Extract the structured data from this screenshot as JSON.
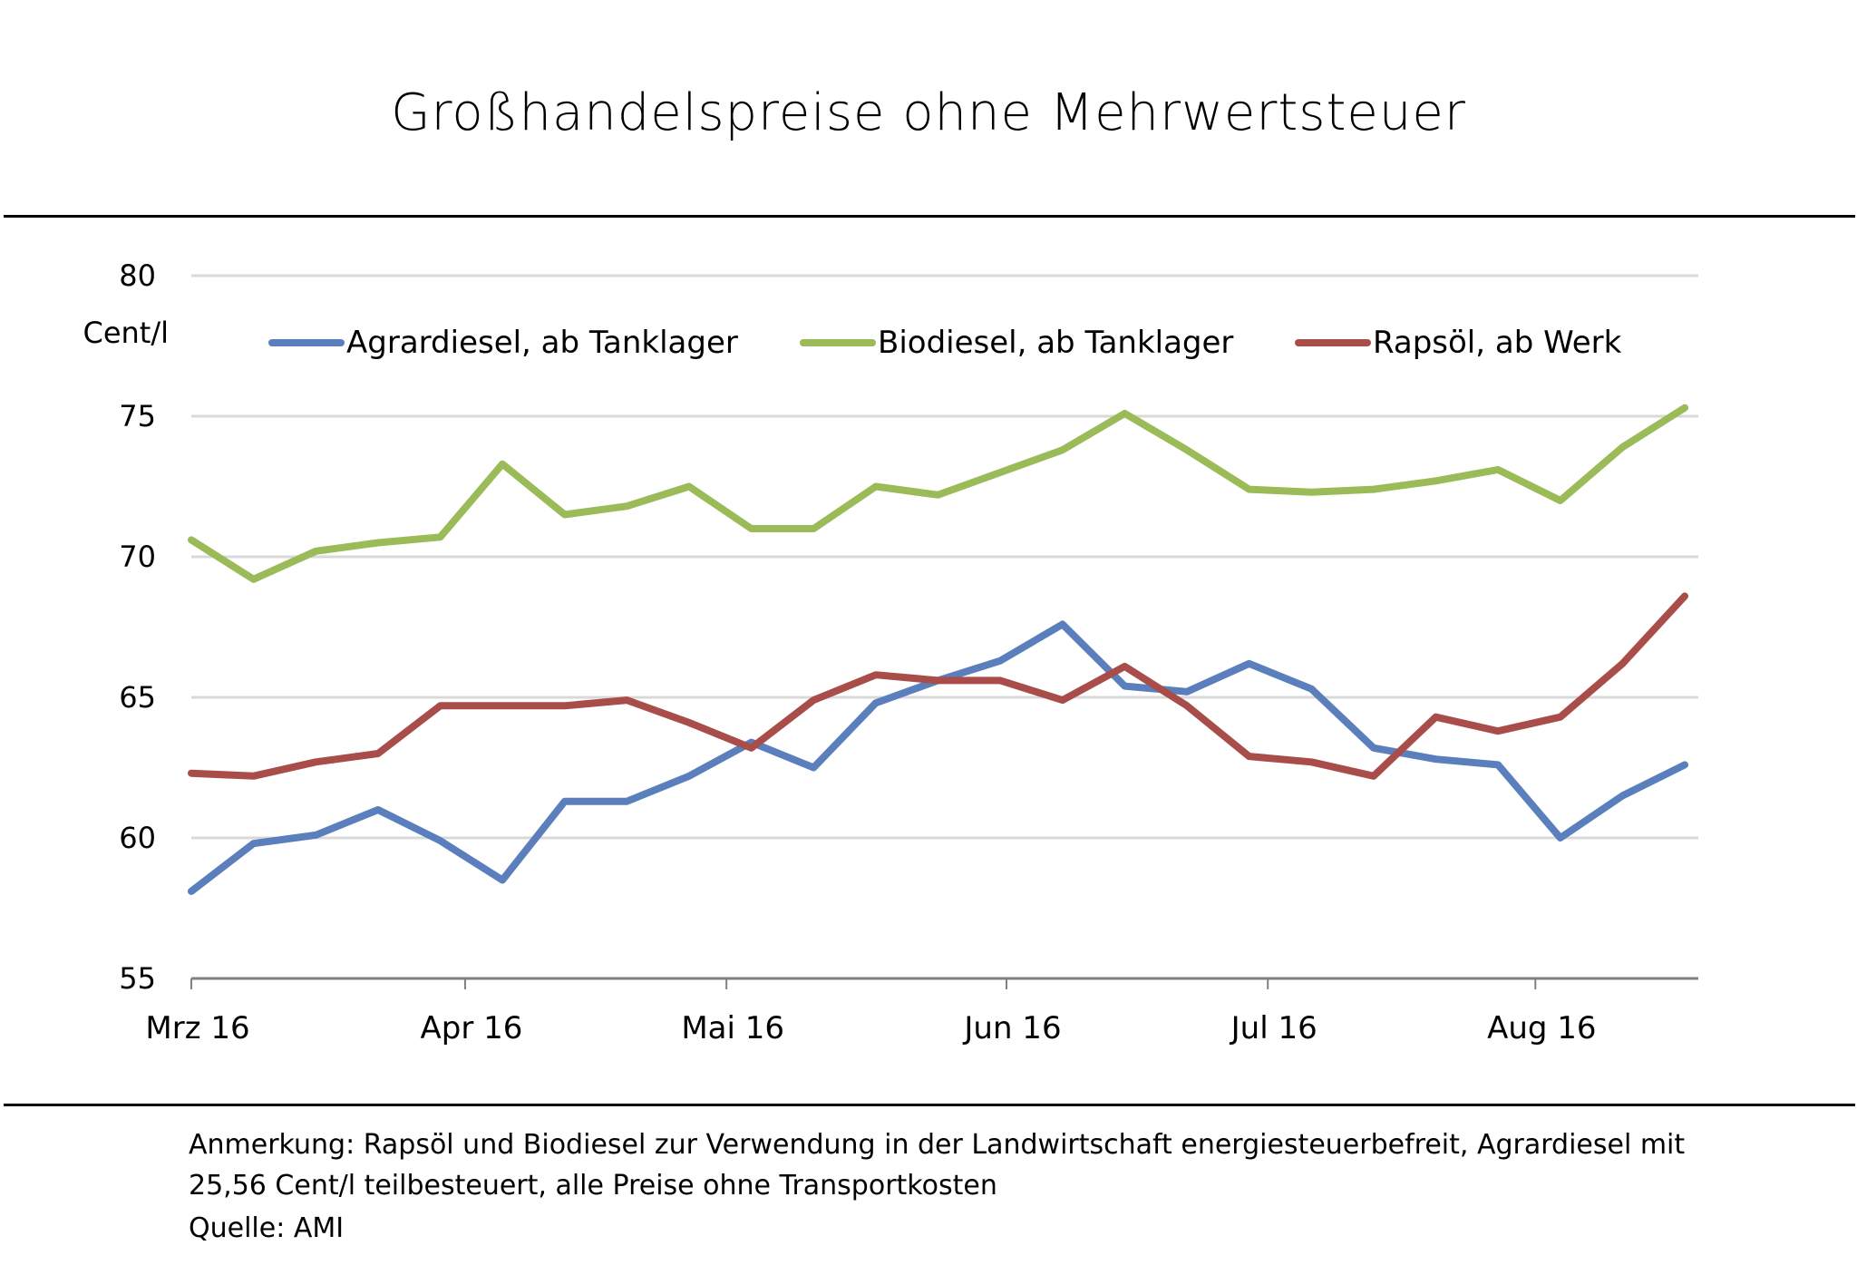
{
  "chart_data": {
    "type": "line",
    "title": "Großhandelspreise ohne Mehrwertsteuer",
    "ylabel": "Cent/l",
    "xlabel": "",
    "ylim": [
      55,
      80
    ],
    "yticks": [
      "55",
      "60",
      "65",
      "70",
      "75",
      "80"
    ],
    "ytick_values": [
      55,
      60,
      65,
      70,
      75,
      80
    ],
    "xticks": [
      {
        "label": "Mrz 16",
        "index": 0
      },
      {
        "label": "Apr 16",
        "index": 4.4
      },
      {
        "label": "Mai 16",
        "index": 8.6
      },
      {
        "label": "Jun 16",
        "index": 13.1
      },
      {
        "label": "Jul 16",
        "index": 17.3
      },
      {
        "label": "Aug 16",
        "index": 21.6
      }
    ],
    "n_points": 25,
    "grid": true,
    "legend_position": "top",
    "series": [
      {
        "name": "Agrardiesel, ab Tanklager",
        "color": "#5b7fbd",
        "values": [
          58.1,
          59.8,
          60.1,
          61.0,
          59.9,
          58.5,
          61.3,
          61.3,
          62.2,
          63.4,
          62.5,
          64.8,
          65.6,
          66.3,
          67.6,
          65.4,
          65.2,
          66.2,
          65.3,
          63.2,
          62.8,
          62.6,
          60.0,
          61.5,
          62.6
        ]
      },
      {
        "name": "Biodiesel, ab Tanklager",
        "color": "#9bbb59",
        "values": [
          70.6,
          69.2,
          70.2,
          70.5,
          70.7,
          73.3,
          71.5,
          71.8,
          72.5,
          71.0,
          71.0,
          72.5,
          72.2,
          73.0,
          73.8,
          75.1,
          73.8,
          72.4,
          72.3,
          72.4,
          72.7,
          73.1,
          72.0,
          73.9,
          75.3
        ]
      },
      {
        "name": "Rapsöl, ab Werk",
        "color": "#a84d4a",
        "values": [
          62.3,
          62.2,
          62.7,
          63.0,
          64.7,
          64.7,
          64.7,
          64.9,
          64.1,
          63.2,
          64.9,
          65.8,
          65.6,
          65.6,
          64.9,
          66.1,
          64.7,
          62.9,
          62.7,
          62.2,
          64.3,
          63.8,
          64.3,
          66.2,
          68.6
        ]
      }
    ]
  },
  "notes": {
    "line1": "Anmerkung: Rapsöl und Biodiesel zur Verwendung in der Landwirtschaft energiesteuerbefreit, Agrardiesel mit",
    "line2": "25,56 Cent/l teilbesteuert, alle Preise ohne Transportkosten",
    "source": "Quelle: AMI"
  }
}
